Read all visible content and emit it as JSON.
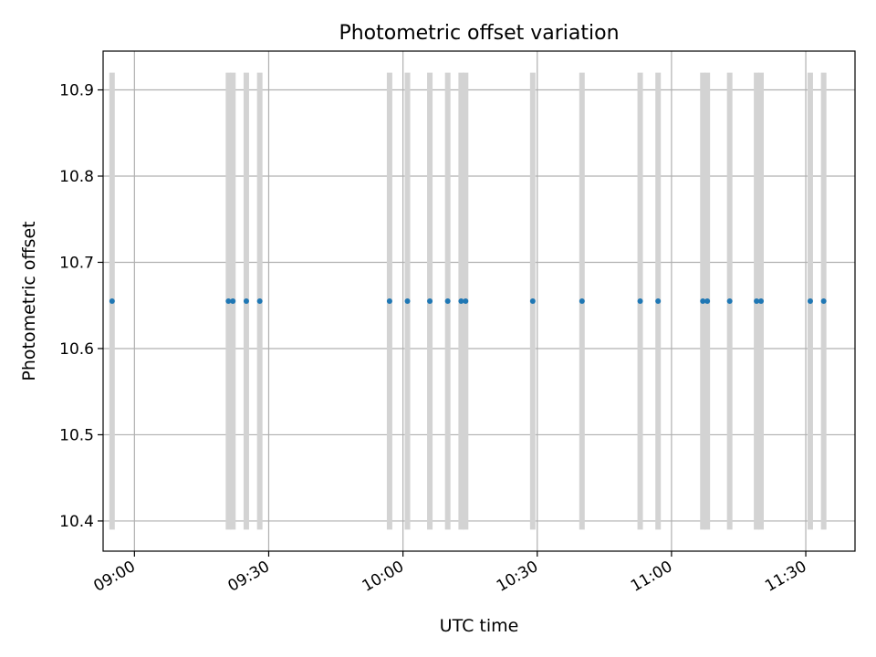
{
  "chart_data": {
    "type": "scatter",
    "title": "Photometric offset variation",
    "xlabel": "UTC time",
    "ylabel": "Photometric offset",
    "grid": true,
    "xlim": [
      "08:53",
      "11:41"
    ],
    "ylim": [
      10.365,
      10.945
    ],
    "x_ticks": [
      "09:00",
      "09:30",
      "10:00",
      "10:30",
      "11:00",
      "11:30"
    ],
    "y_ticks": [
      10.4,
      10.5,
      10.6,
      10.7,
      10.8,
      10.9
    ],
    "y_tick_labels": [
      "10.4",
      "10.5",
      "10.6",
      "10.7",
      "10.8",
      "10.9"
    ],
    "colors": {
      "points": "#1f77b4",
      "bands": "#d3d3d3",
      "grid": "#b0b0b0"
    },
    "bands": {
      "y_range": [
        10.39,
        10.92
      ],
      "x": [
        "08:55",
        "09:21",
        "09:22",
        "09:25",
        "09:28",
        "09:57",
        "10:01",
        "10:06",
        "10:10",
        "10:13",
        "10:14",
        "10:29",
        "10:40",
        "10:53",
        "10:57",
        "11:07",
        "11:08",
        "11:13",
        "11:19",
        "11:20",
        "11:31",
        "11:34"
      ]
    },
    "series": [
      {
        "x": [
          "08:55",
          "09:21",
          "09:22",
          "09:25",
          "09:28",
          "09:57",
          "10:01",
          "10:06",
          "10:10",
          "10:13",
          "10:14",
          "10:29",
          "10:40",
          "10:53",
          "10:57",
          "11:07",
          "11:08",
          "11:13",
          "11:19",
          "11:20",
          "11:31",
          "11:34"
        ],
        "y": [
          10.655,
          10.655,
          10.655,
          10.655,
          10.655,
          10.655,
          10.655,
          10.655,
          10.655,
          10.655,
          10.655,
          10.655,
          10.655,
          10.655,
          10.655,
          10.655,
          10.655,
          10.655,
          10.655,
          10.655,
          10.655,
          10.655
        ]
      }
    ]
  }
}
